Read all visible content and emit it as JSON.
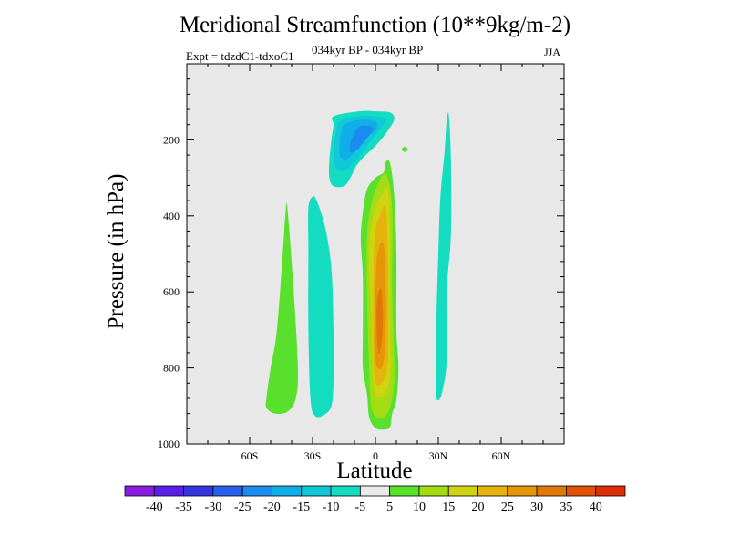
{
  "chart_data": {
    "type": "contour",
    "title": "Meridional Streamfunction (10**9kg/m-2)",
    "subtitle_left": "Expt = tdzdC1-tdxoC1",
    "subtitle_center": "034kyr BP - 034kyr BP",
    "subtitle_right": "JJA",
    "xlabel": "Latitude",
    "ylabel": "Pressure (in hPa)",
    "xlim": [
      -90,
      90
    ],
    "ylim": [
      1000,
      0
    ],
    "xticks": [
      {
        "value": -60,
        "label": "60S"
      },
      {
        "value": -30,
        "label": "30S"
      },
      {
        "value": 0,
        "label": "0"
      },
      {
        "value": 30,
        "label": "30N"
      },
      {
        "value": 60,
        "label": "60N"
      }
    ],
    "yticks": [
      {
        "value": 200,
        "label": "200"
      },
      {
        "value": 400,
        "label": "400"
      },
      {
        "value": 600,
        "label": "600"
      },
      {
        "value": 800,
        "label": "800"
      },
      {
        "value": 1000,
        "label": "1000"
      }
    ],
    "background_color": "#e8e8e8",
    "colorbar": {
      "colors": [
        "#8a1ee0",
        "#5a1ee8",
        "#3434e0",
        "#2860ec",
        "#1a8cf0",
        "#10aee6",
        "#10c8d8",
        "#14dcc0",
        "#eaeaea",
        "#58e02c",
        "#a4dc14",
        "#d0d410",
        "#e4b40c",
        "#e49608",
        "#e07806",
        "#e05006",
        "#dc2e06"
      ],
      "tick_labels": [
        "-40",
        "-35",
        "-30",
        "-25",
        "-20",
        "-15",
        "-10",
        "-5",
        "5",
        "10",
        "15",
        "20",
        "25",
        "30",
        "35",
        "40"
      ]
    },
    "regions": [
      {
        "name": "lobe-sh-60s",
        "level": 5,
        "color": "#58e02c",
        "points": [
          [
            -42,
            380
          ],
          [
            -39,
            600
          ],
          [
            -37,
            800
          ],
          [
            -38,
            880
          ],
          [
            -42,
            915
          ],
          [
            -48,
            920
          ],
          [
            -52,
            905
          ],
          [
            -52,
            880
          ],
          [
            -50,
            800
          ],
          [
            -47,
            700
          ],
          [
            -44,
            480
          ],
          [
            -43,
            400
          ]
        ]
      },
      {
        "name": "lobe-sh-30s",
        "level": -5,
        "color": "#14dcc0",
        "points": [
          [
            -30,
            350
          ],
          [
            -28,
            360
          ],
          [
            -24,
            430
          ],
          [
            -21,
            540
          ],
          [
            -20,
            700
          ],
          [
            -20,
            830
          ],
          [
            -21,
            900
          ],
          [
            -25,
            925
          ],
          [
            -29,
            925
          ],
          [
            -31,
            880
          ],
          [
            -32,
            700
          ],
          [
            -32,
            500
          ],
          [
            -32,
            380
          ]
        ]
      },
      {
        "name": "lobe-nh-30n",
        "level": -5,
        "color": "#14dcc0",
        "points": [
          [
            35,
            135
          ],
          [
            36,
            250
          ],
          [
            36,
            450
          ],
          [
            34,
            600
          ],
          [
            34,
            780
          ],
          [
            32,
            860
          ],
          [
            30,
            885
          ],
          [
            29,
            860
          ],
          [
            29,
            700
          ],
          [
            30,
            500
          ],
          [
            31,
            350
          ],
          [
            33,
            230
          ],
          [
            34,
            150
          ]
        ]
      },
      {
        "name": "neg-cell-outer",
        "level": -5,
        "color": "#14dcc0",
        "points": [
          [
            -20,
            138
          ],
          [
            -8,
            125
          ],
          [
            0,
            125
          ],
          [
            7,
            128
          ],
          [
            9,
            145
          ],
          [
            6,
            175
          ],
          [
            1,
            210
          ],
          [
            -8,
            260
          ],
          [
            -12,
            300
          ],
          [
            -15,
            322
          ],
          [
            -20,
            322
          ],
          [
            -22,
            300
          ],
          [
            -22,
            255
          ],
          [
            -21,
            200
          ],
          [
            -20,
            160
          ]
        ]
      },
      {
        "name": "neg-cell-10",
        "level": -10,
        "color": "#10c8d8",
        "points": [
          [
            -17,
            150
          ],
          [
            -8,
            138
          ],
          [
            0,
            138
          ],
          [
            5,
            145
          ],
          [
            4,
            160
          ],
          [
            -1,
            195
          ],
          [
            -7,
            240
          ],
          [
            -12,
            272
          ],
          [
            -16,
            282
          ],
          [
            -19,
            272
          ],
          [
            -20,
            240
          ],
          [
            -19,
            190
          ]
        ]
      },
      {
        "name": "neg-cell-15",
        "level": -15,
        "color": "#10aee6",
        "points": [
          [
            -15,
            160
          ],
          [
            -8,
            148
          ],
          [
            -1,
            150
          ],
          [
            1,
            168
          ],
          [
            -5,
            200
          ],
          [
            -11,
            238
          ],
          [
            -14,
            252
          ],
          [
            -17,
            242
          ],
          [
            -17,
            205
          ],
          [
            -16,
            175
          ]
        ]
      },
      {
        "name": "neg-cell-20",
        "level": -20,
        "color": "#1a8cf0",
        "points": [
          [
            -5,
            162
          ],
          [
            -1,
            170
          ],
          [
            -4,
            195
          ],
          [
            -9,
            228
          ],
          [
            -12,
            232
          ],
          [
            -12,
            210
          ],
          [
            -10,
            182
          ],
          [
            -8,
            166
          ]
        ]
      },
      {
        "name": "pos-cell-5",
        "level": 5,
        "color": "#58e02c",
        "points": [
          [
            5,
            258
          ],
          [
            7,
            262
          ],
          [
            9,
            350
          ],
          [
            10,
            500
          ],
          [
            10,
            700
          ],
          [
            11,
            800
          ],
          [
            10,
            885
          ],
          [
            8,
            920
          ],
          [
            7,
            955
          ],
          [
            4,
            962
          ],
          [
            0,
            958
          ],
          [
            -3,
            930
          ],
          [
            -4,
            870
          ],
          [
            -6,
            800
          ],
          [
            -6,
            700
          ],
          [
            -6,
            560
          ],
          [
            -7,
            460
          ],
          [
            -6,
            390
          ],
          [
            -4,
            330
          ],
          [
            0,
            300
          ],
          [
            4,
            285
          ]
        ]
      },
      {
        "name": "pos-cell-10",
        "level": 10,
        "color": "#a4dc14",
        "points": [
          [
            5,
            290
          ],
          [
            8,
            380
          ],
          [
            8,
            600
          ],
          [
            9,
            800
          ],
          [
            8,
            880
          ],
          [
            5,
            925
          ],
          [
            1,
            932
          ],
          [
            -2,
            900
          ],
          [
            -3,
            800
          ],
          [
            -4,
            600
          ],
          [
            -4,
            450
          ],
          [
            -2,
            370
          ],
          [
            1,
            320
          ]
        ]
      },
      {
        "name": "pos-cell-15",
        "level": 15,
        "color": "#d0d410",
        "points": [
          [
            6,
            330
          ],
          [
            7,
            450
          ],
          [
            7,
            650
          ],
          [
            7,
            820
          ],
          [
            4,
            870
          ],
          [
            1,
            875
          ],
          [
            -1,
            830
          ],
          [
            -2,
            650
          ],
          [
            -3,
            480
          ],
          [
            0,
            380
          ],
          [
            3,
            345
          ]
        ]
      },
      {
        "name": "pos-cell-20",
        "level": 20,
        "color": "#e4b40c",
        "points": [
          [
            5,
            380
          ],
          [
            6,
            540
          ],
          [
            6,
            780
          ],
          [
            3,
            840
          ],
          [
            0,
            835
          ],
          [
            -1,
            760
          ],
          [
            -1,
            560
          ],
          [
            0,
            440
          ],
          [
            2,
            400
          ]
        ]
      },
      {
        "name": "pos-cell-25",
        "level": 25,
        "color": "#e49608",
        "points": [
          [
            4,
            480
          ],
          [
            5,
            650
          ],
          [
            4,
            780
          ],
          [
            1,
            800
          ],
          [
            -0.5,
            740
          ],
          [
            0,
            600
          ],
          [
            1,
            500
          ]
        ]
      },
      {
        "name": "pos-cell-30",
        "level": 30,
        "color": "#e07806",
        "points": [
          [
            3,
            600
          ],
          [
            3.5,
            690
          ],
          [
            2,
            760
          ],
          [
            1,
            740
          ],
          [
            0.5,
            650
          ],
          [
            1.5,
            600
          ]
        ]
      },
      {
        "name": "blob-20n",
        "level": 5,
        "color": "#58e02c",
        "points": [
          [
            14,
            218
          ],
          [
            15.5,
            225
          ],
          [
            14,
            232
          ],
          [
            12.5,
            225
          ]
        ]
      }
    ]
  }
}
